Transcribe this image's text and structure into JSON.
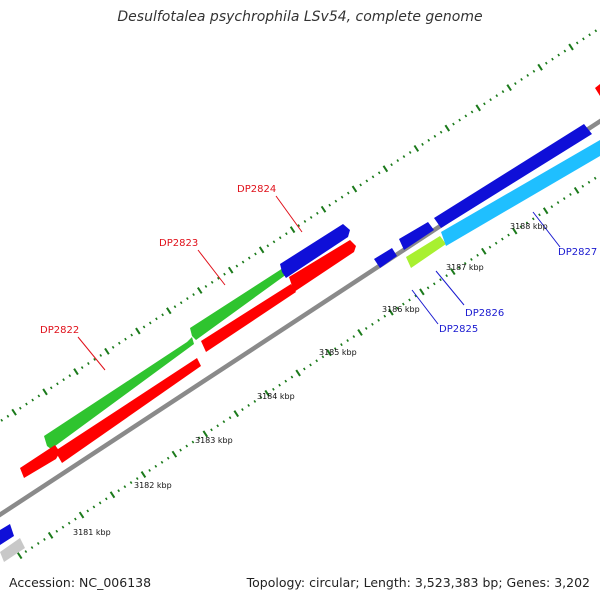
{
  "title": "Desulfotalea psychrophila LSv54, complete genome",
  "accession": "Accession: NC_006138",
  "topology": "Topology: circular; Length: 3,523,383 bp; Genes: 3,202",
  "scale_labels": [
    "3181 kbp",
    "3182 kbp",
    "3183 kbp",
    "3184 kbp",
    "3185 kbp",
    "3186 kbp",
    "3187 kbp",
    "3188 kbp"
  ],
  "gene_labels": [
    {
      "text": "DP2822",
      "color": "#e0101a"
    },
    {
      "text": "DP2823",
      "color": "#e0101a"
    },
    {
      "text": "DP2824",
      "color": "#e0101a"
    },
    {
      "text": "DP2825",
      "color": "#1a1ad0"
    },
    {
      "text": "DP2826",
      "color": "#1a1ad0"
    },
    {
      "text": "DP2827",
      "color": "#1a1ad0"
    }
  ],
  "colors": {
    "backbone": "#8a8a8a",
    "tick": "#1b7a1b",
    "red": "#ff0000",
    "green": "#2fc42f",
    "blue": "#0f0fd8",
    "cyan": "#1fbfff",
    "lime": "#a8f030",
    "grey": "#c8c8c8"
  }
}
